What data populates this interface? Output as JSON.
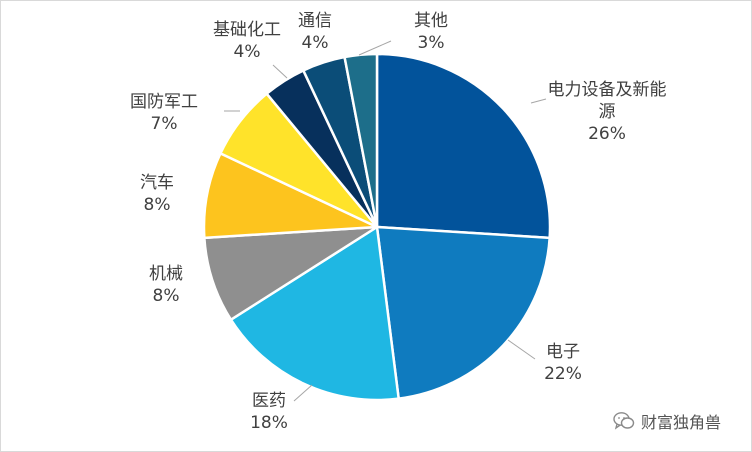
{
  "chart_data": {
    "type": "pie",
    "title": "",
    "slices": [
      {
        "label": "电力设备及新能源",
        "label_lines": [
          "电力设备及新能",
          "源"
        ],
        "percent_text": "26%",
        "value": 26,
        "color": "#02539b"
      },
      {
        "label": "电子",
        "label_lines": [
          "电子"
        ],
        "percent_text": "22%",
        "value": 22,
        "color": "#0f7bbf"
      },
      {
        "label": "医药",
        "label_lines": [
          "医药"
        ],
        "percent_text": "18%",
        "value": 18,
        "color": "#1fb7e3"
      },
      {
        "label": "机械",
        "label_lines": [
          "机械"
        ],
        "percent_text": "8%",
        "value": 8,
        "color": "#8f8f8f"
      },
      {
        "label": "汽车",
        "label_lines": [
          "汽车"
        ],
        "percent_text": "8%",
        "value": 8,
        "color": "#fdc41e"
      },
      {
        "label": "国防军工",
        "label_lines": [
          "国防军工"
        ],
        "percent_text": "7%",
        "value": 7,
        "color": "#ffe32a"
      },
      {
        "label": "基础化工",
        "label_lines": [
          "基础化工"
        ],
        "percent_text": "4%",
        "value": 4,
        "color": "#07305c"
      },
      {
        "label": "通信",
        "label_lines": [
          "通信"
        ],
        "percent_text": "4%",
        "value": 4,
        "color": "#0b4d78"
      },
      {
        "label": "其他",
        "label_lines": [
          "其他"
        ],
        "percent_text": "3%",
        "value": 3,
        "color": "#1d6e8a"
      }
    ],
    "legend": "none",
    "data_labels": "outside with leader lines"
  },
  "watermark": {
    "text": "财富独角兽",
    "icon": "wechat-icon"
  }
}
